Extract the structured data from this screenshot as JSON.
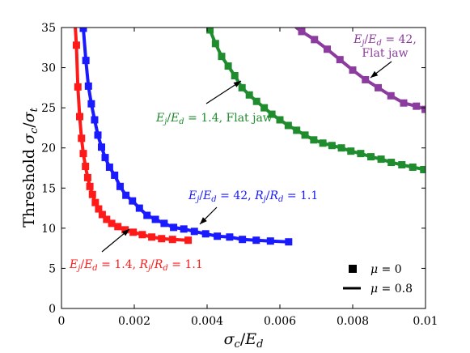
{
  "chart_data": {
    "type": "scatter",
    "xlabel": "σc/Ed",
    "ylabel": "Threshold σc/σt",
    "xlim": [
      0,
      0.01
    ],
    "ylim": [
      0,
      35
    ],
    "xticks": [
      "0",
      "0.002",
      "0.004",
      "0.006",
      "0.008",
      "0.01"
    ],
    "yticks": [
      "0",
      "5",
      "10",
      "15",
      "20",
      "25",
      "30",
      "35"
    ],
    "grid": false,
    "legend_position": "bottom-right",
    "legend": [
      {
        "marker": "square",
        "label": "μ = 0"
      },
      {
        "marker": "line",
        "label": "μ = 0.8"
      }
    ],
    "series": [
      {
        "id": "red",
        "color": "#ff1a1a",
        "annotation": "Ej/Ed = 1.4, Rj/Rd = 1.1",
        "markers": {
          "x": [
            0.00041,
            0.00045,
            0.0005,
            0.00055,
            0.0006,
            0.00066,
            0.00072,
            0.00078,
            0.00085,
            0.00093,
            0.00102,
            0.00112,
            0.00124,
            0.00138,
            0.00155,
            0.00175,
            0.00197,
            0.00222,
            0.00248,
            0.00275,
            0.00305,
            0.00348
          ],
          "y": [
            32.8,
            27.6,
            23.9,
            21.2,
            19.3,
            17.7,
            16.3,
            15.2,
            14.2,
            13.2,
            12.4,
            11.7,
            11.1,
            10.6,
            10.2,
            9.8,
            9.5,
            9.2,
            8.9,
            8.7,
            8.6,
            8.5
          ]
        },
        "line": {
          "x": [
            0.00038,
            0.00041,
            0.00045,
            0.0005,
            0.00055,
            0.0006,
            0.00066,
            0.00072,
            0.00078,
            0.00085,
            0.00093,
            0.00102,
            0.00112,
            0.00124,
            0.00138,
            0.00155,
            0.00175,
            0.00197,
            0.00222,
            0.00248,
            0.00275,
            0.00305,
            0.00348
          ],
          "y": [
            35,
            32.8,
            27.6,
            23.9,
            21.2,
            19.3,
            17.7,
            16.3,
            15.2,
            14.2,
            13.2,
            12.4,
            11.7,
            11.1,
            10.6,
            10.2,
            9.8,
            9.5,
            9.2,
            8.9,
            8.7,
            8.6,
            8.5
          ]
        }
      },
      {
        "id": "blue",
        "color": "#1a1aff",
        "annotation": "Ej/Ed = 42, Rj/Rd = 1.1",
        "markers": {
          "x": [
            0.0006,
            0.00067,
            0.00074,
            0.00082,
            0.00091,
            0.001,
            0.0011,
            0.0012,
            0.00132,
            0.00146,
            0.00161,
            0.00177,
            0.00195,
            0.00214,
            0.00235,
            0.00258,
            0.00282,
            0.00308,
            0.00336,
            0.00365,
            0.00396,
            0.00428,
            0.00462,
            0.00497,
            0.00535,
            0.00574,
            0.00624
          ],
          "y": [
            34.9,
            30.9,
            27.7,
            25.5,
            23.5,
            21.6,
            20.1,
            18.8,
            17.6,
            16.6,
            15.2,
            14.1,
            13.4,
            12.5,
            11.6,
            11.1,
            10.6,
            10.1,
            9.9,
            9.6,
            9.3,
            9.0,
            8.9,
            8.6,
            8.5,
            8.4,
            8.3
          ]
        },
        "line": {
          "x": [
            0.0006,
            0.00067,
            0.00074,
            0.00082,
            0.00091,
            0.001,
            0.0011,
            0.0012,
            0.00132,
            0.00146,
            0.00161,
            0.00177,
            0.00195,
            0.00214,
            0.00235,
            0.00258,
            0.00282,
            0.00308,
            0.00336,
            0.00365,
            0.00396,
            0.00428,
            0.00462,
            0.00497,
            0.00535,
            0.00574,
            0.00624
          ],
          "y": [
            34.9,
            30.9,
            27.7,
            25.5,
            23.5,
            21.6,
            20.1,
            18.8,
            17.6,
            16.6,
            15.2,
            14.1,
            13.4,
            12.5,
            11.6,
            11.1,
            10.6,
            10.1,
            9.9,
            9.6,
            9.3,
            9.0,
            8.9,
            8.6,
            8.5,
            8.4,
            8.3
          ]
        }
      },
      {
        "id": "green",
        "color": "#1f8c2e",
        "annotation": "Ej/Ed = 1.4, Flat jaw",
        "markers": {
          "x": [
            0.00408,
            0.00423,
            0.0044,
            0.00458,
            0.00476,
            0.00496,
            0.00516,
            0.00536,
            0.00557,
            0.00578,
            0.006,
            0.00623,
            0.00646,
            0.00669,
            0.00693,
            0.00718,
            0.00743,
            0.00769,
            0.00795,
            0.00822,
            0.0085,
            0.00878,
            0.00906,
            0.00935,
            0.00965,
            0.00995
          ],
          "y": [
            34.7,
            33.0,
            31.4,
            30.2,
            29.0,
            27.5,
            26.6,
            25.8,
            25.0,
            24.2,
            23.5,
            22.8,
            22.2,
            21.6,
            21.0,
            20.6,
            20.3,
            20.0,
            19.6,
            19.3,
            18.9,
            18.6,
            18.2,
            17.9,
            17.6,
            17.3
          ]
        },
        "line": {
          "x": [
            0.00408,
            0.00423,
            0.0044,
            0.00458,
            0.00476,
            0.00496,
            0.00516,
            0.00536,
            0.00557,
            0.00578,
            0.006,
            0.00623,
            0.00646,
            0.00669,
            0.00693,
            0.00718,
            0.00743,
            0.00769,
            0.00795,
            0.00822,
            0.0085,
            0.00878,
            0.00906,
            0.00935,
            0.00965,
            0.01
          ],
          "y": [
            34.7,
            33.0,
            31.4,
            30.2,
            29.0,
            27.5,
            26.6,
            25.8,
            25.0,
            24.2,
            23.5,
            22.8,
            22.2,
            21.6,
            21.0,
            20.6,
            20.3,
            20.0,
            19.6,
            19.3,
            18.9,
            18.6,
            18.2,
            17.9,
            17.6,
            17.3
          ]
        }
      },
      {
        "id": "purple",
        "color": "#8c3c9e",
        "annotation": "Ej/Ed = 42, Flat jaw",
        "markers": {
          "x": [
            0.0066,
            0.00695,
            0.0073,
            0.00765,
            0.008,
            0.00835,
            0.0087,
            0.00905,
            0.0094,
            0.00975,
            0.00999
          ],
          "y": [
            34.5,
            33.5,
            32.3,
            31.0,
            29.7,
            28.5,
            27.5,
            26.5,
            25.6,
            25.2,
            24.8
          ]
        },
        "line": {
          "x": [
            0.00645,
            0.0066,
            0.00695,
            0.0073,
            0.00765,
            0.008,
            0.00835,
            0.0087,
            0.00905,
            0.0094,
            0.00975,
            0.01
          ],
          "y": [
            35,
            34.5,
            33.5,
            32.3,
            31.0,
            29.7,
            28.5,
            27.5,
            26.5,
            25.6,
            25.2,
            24.8
          ]
        }
      }
    ]
  }
}
